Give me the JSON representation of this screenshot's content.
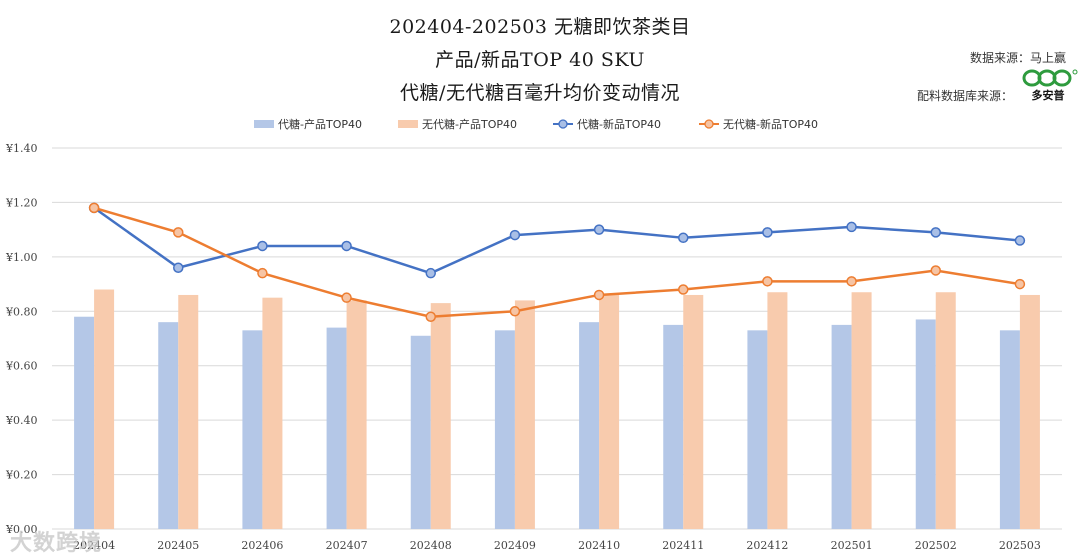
{
  "titles": {
    "line1": "202404-202503 无糖即饮茶类目",
    "line2": "产品/新品TOP 40 SKU",
    "line3": "代糖/无代糖百毫升均价变动情况"
  },
  "sources": {
    "data_source": "数据来源：马上赢",
    "ingredient_source": "配料数据库来源：",
    "logo_text": "多安普"
  },
  "watermark": "大数跨境",
  "colors": {
    "bar1": "#b4c7e7",
    "bar2": "#f8cbad",
    "line1": "#4472c4",
    "line2": "#ed7d31",
    "grid": "#d9d9d9",
    "logo_green": "#2e9b3e"
  },
  "chart_data": {
    "type": "bar+line",
    "categories": [
      "202404",
      "202405",
      "202406",
      "202407",
      "202408",
      "202409",
      "202410",
      "202411",
      "202412",
      "202501",
      "202502",
      "202503"
    ],
    "series": [
      {
        "name": "代糖-产品TOP40",
        "kind": "bar",
        "values": [
          0.78,
          0.76,
          0.73,
          0.74,
          0.71,
          0.73,
          0.76,
          0.75,
          0.73,
          0.75,
          0.77,
          0.73
        ]
      },
      {
        "name": "无代糖-产品TOP40",
        "kind": "bar",
        "values": [
          0.88,
          0.86,
          0.85,
          0.84,
          0.83,
          0.84,
          0.86,
          0.86,
          0.87,
          0.87,
          0.87,
          0.86
        ]
      },
      {
        "name": "代糖-新品TOP40",
        "kind": "line",
        "values": [
          1.18,
          0.96,
          1.04,
          1.04,
          0.94,
          1.08,
          1.1,
          1.07,
          1.09,
          1.11,
          1.09,
          1.06
        ]
      },
      {
        "name": "无代糖-新品TOP40",
        "kind": "line",
        "values": [
          1.18,
          1.09,
          0.94,
          0.85,
          0.78,
          0.8,
          0.86,
          0.88,
          0.91,
          0.91,
          0.95,
          0.9
        ]
      }
    ],
    "y_ticks": [
      "¥0.00",
      "¥0.20",
      "¥0.40",
      "¥0.60",
      "¥0.80",
      "¥1.00",
      "¥1.20",
      "¥1.40"
    ],
    "ylim": [
      0,
      1.4
    ],
    "legend_position": "top-center",
    "grid": true
  }
}
